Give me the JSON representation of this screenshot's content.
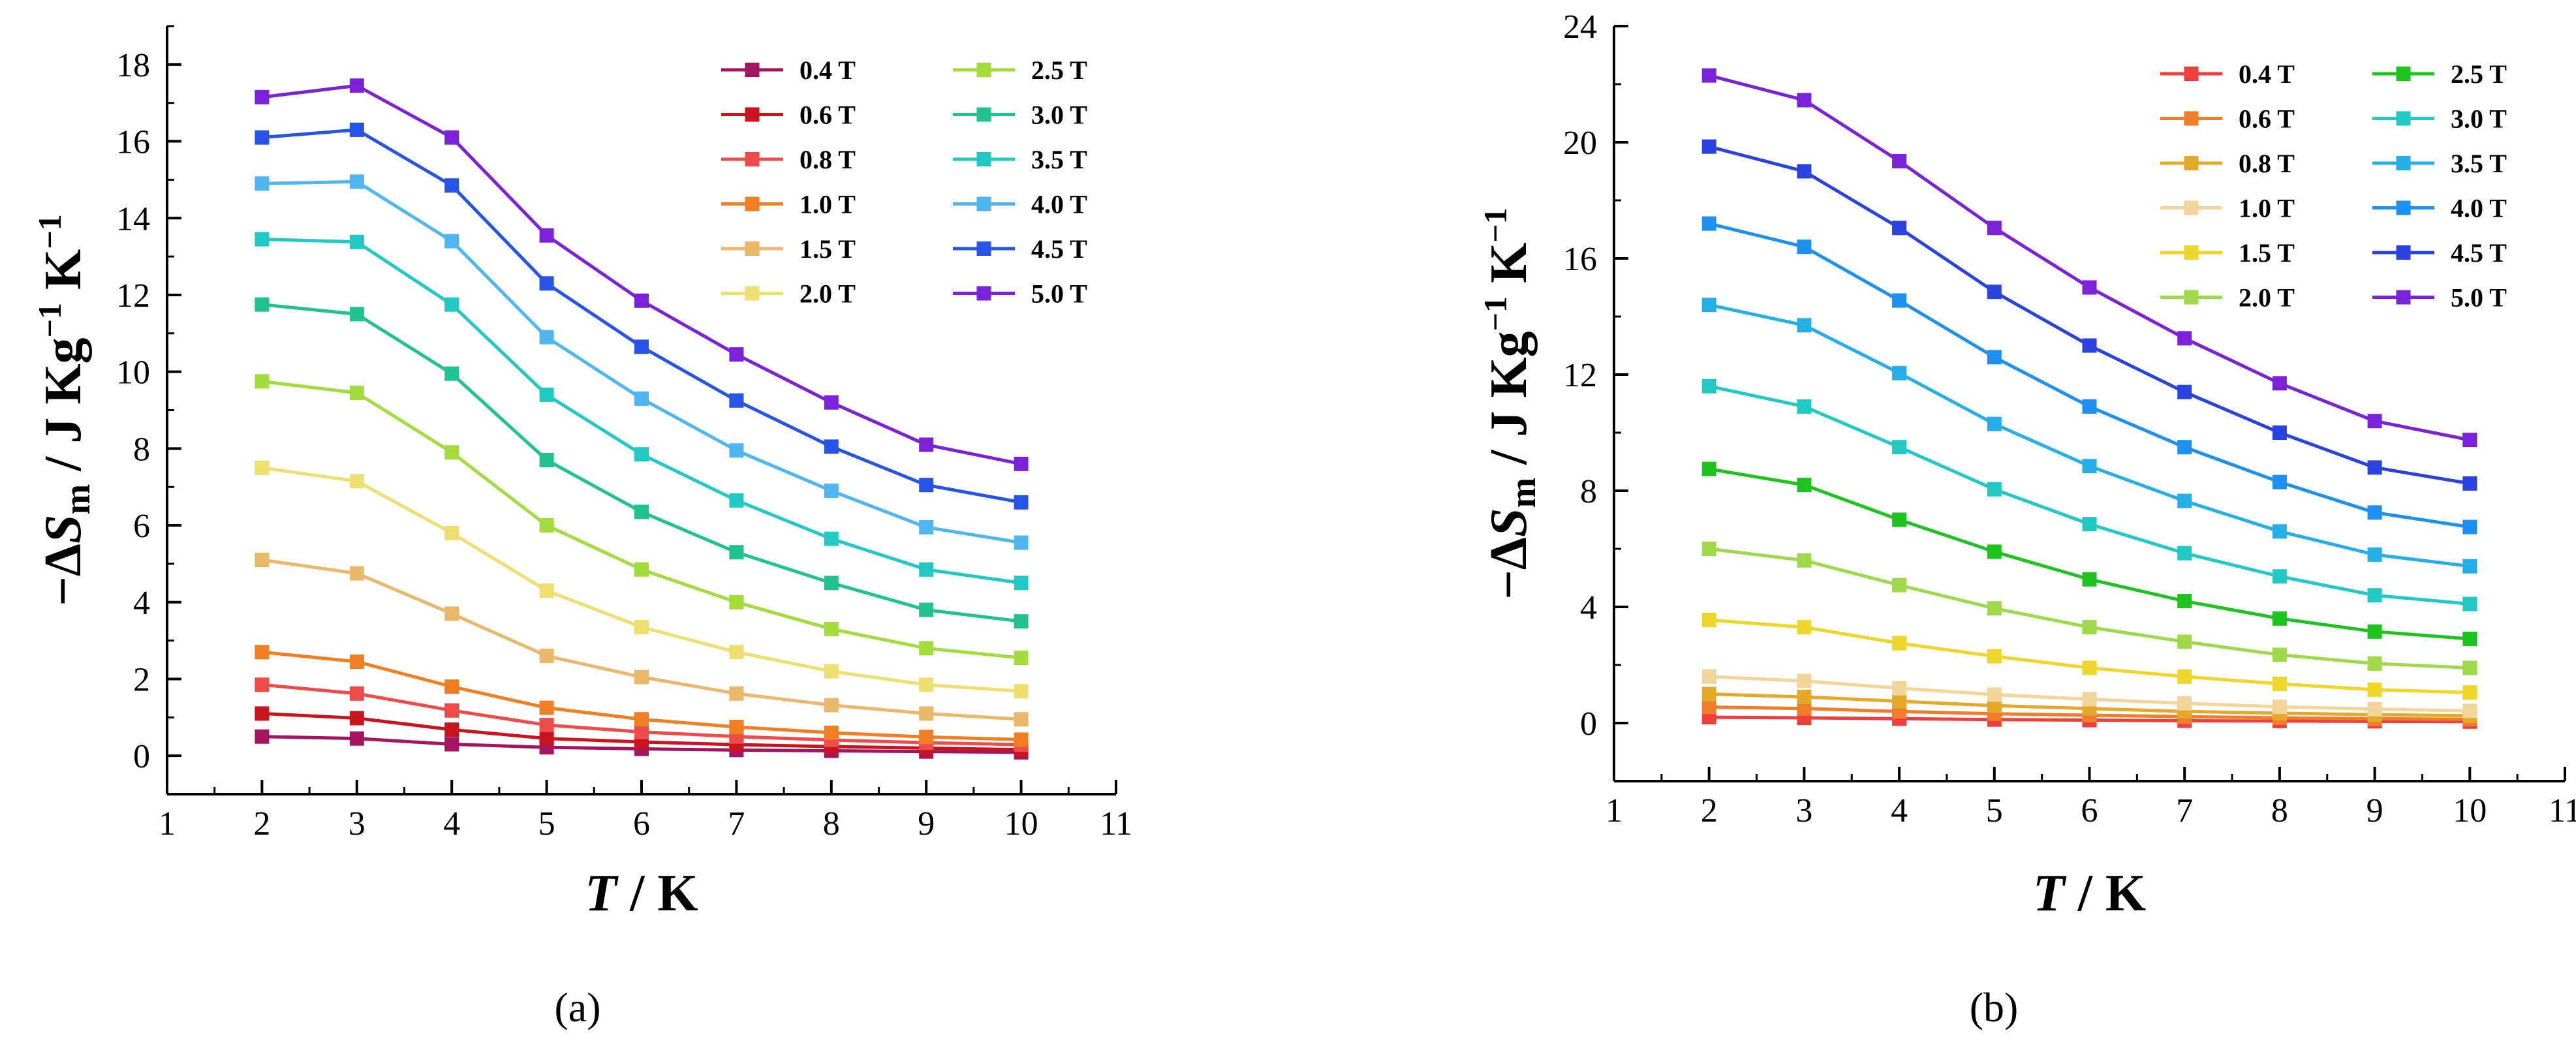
{
  "chart_data": [
    {
      "type": "line",
      "caption": "(a)",
      "x": [
        2,
        3,
        4,
        5,
        6,
        7,
        8,
        9,
        10
      ],
      "xlim": [
        1,
        11
      ],
      "ylim": [
        -1,
        19
      ],
      "xticks": [
        "1",
        "2",
        "3",
        "4",
        "5",
        "6",
        "7",
        "8",
        "9",
        "10",
        "11"
      ],
      "yticks": [
        "0",
        "2",
        "4",
        "6",
        "8",
        "10",
        "12",
        "14",
        "16",
        "18"
      ],
      "xlabel": {
        "italic": "T",
        "rest": " / K"
      },
      "ylabel": {
        "pre": "−Δ",
        "italic": "S",
        "sub": "m",
        "rest": " / J Kg",
        "sup1": "−1",
        "mid": " K",
        "sup2": "−1"
      },
      "legend_position": "top-right",
      "series": [
        {
          "name": "0.4 T",
          "color": "#a3155e",
          "values": [
            0.5,
            0.45,
            0.3,
            0.22,
            0.18,
            0.15,
            0.13,
            0.11,
            0.09
          ]
        },
        {
          "name": "0.6 T",
          "color": "#c8141e",
          "values": [
            1.1,
            0.98,
            0.68,
            0.45,
            0.36,
            0.29,
            0.24,
            0.2,
            0.16
          ]
        },
        {
          "name": "0.8 T",
          "color": "#ee4b4b",
          "values": [
            1.85,
            1.62,
            1.18,
            0.8,
            0.62,
            0.5,
            0.41,
            0.34,
            0.29
          ]
        },
        {
          "name": "1.0 T",
          "color": "#f07f24",
          "values": [
            2.7,
            2.45,
            1.8,
            1.25,
            0.95,
            0.75,
            0.6,
            0.49,
            0.42
          ]
        },
        {
          "name": "1.5 T",
          "color": "#e9b86a",
          "values": [
            5.1,
            4.75,
            3.7,
            2.6,
            2.05,
            1.62,
            1.32,
            1.1,
            0.95
          ]
        },
        {
          "name": "2.0 T",
          "color": "#eee070",
          "values": [
            7.5,
            7.15,
            5.8,
            4.3,
            3.35,
            2.7,
            2.2,
            1.85,
            1.68
          ]
        },
        {
          "name": "2.5 T",
          "color": "#a3dc3c",
          "values": [
            9.75,
            9.45,
            7.9,
            6.0,
            4.85,
            4.0,
            3.3,
            2.8,
            2.55
          ]
        },
        {
          "name": "3.0 T",
          "color": "#22c28e",
          "values": [
            11.75,
            11.5,
            9.95,
            7.7,
            6.35,
            5.3,
            4.5,
            3.8,
            3.5
          ]
        },
        {
          "name": "3.5 T",
          "color": "#22c9c4",
          "values": [
            13.45,
            13.38,
            11.75,
            9.4,
            7.85,
            6.65,
            5.65,
            4.85,
            4.5
          ]
        },
        {
          "name": "4.0 T",
          "color": "#4fb6f0",
          "values": [
            14.9,
            14.95,
            13.4,
            10.9,
            9.3,
            7.95,
            6.9,
            5.95,
            5.55
          ]
        },
        {
          "name": "4.5 T",
          "color": "#2753e6",
          "values": [
            16.1,
            16.3,
            14.85,
            12.3,
            10.65,
            9.25,
            8.05,
            7.05,
            6.6
          ]
        },
        {
          "name": "5.0 T",
          "color": "#7b22d8",
          "values": [
            17.15,
            17.45,
            16.1,
            13.55,
            11.85,
            10.45,
            9.2,
            8.1,
            7.6
          ]
        }
      ]
    },
    {
      "type": "line",
      "caption": "(b)",
      "x": [
        2,
        3,
        4,
        5,
        6,
        7,
        8,
        9,
        10
      ],
      "xlim": [
        1,
        11
      ],
      "ylim": [
        -2,
        24
      ],
      "xticks": [
        "1",
        "2",
        "3",
        "4",
        "5",
        "6",
        "7",
        "8",
        "9",
        "10",
        "11"
      ],
      "yticks": [
        "0",
        "4",
        "8",
        "12",
        "16",
        "20",
        "24"
      ],
      "xlabel": {
        "italic": "T",
        "rest": " / K"
      },
      "ylabel": {
        "pre": "−Δ",
        "italic": "S",
        "sub": "m",
        "rest": " / J Kg",
        "sup1": "−1",
        "mid": " K",
        "sup2": "−1"
      },
      "legend_position": "top-right",
      "series": [
        {
          "name": "0.4 T",
          "color": "#ee3e3e",
          "values": [
            0.2,
            0.18,
            0.15,
            0.12,
            0.1,
            0.08,
            0.07,
            0.06,
            0.05
          ]
        },
        {
          "name": "0.6 T",
          "color": "#ef7d2a",
          "values": [
            0.55,
            0.5,
            0.4,
            0.32,
            0.27,
            0.22,
            0.18,
            0.15,
            0.13
          ]
        },
        {
          "name": "0.8 T",
          "color": "#e4a82a",
          "values": [
            1.0,
            0.9,
            0.75,
            0.6,
            0.5,
            0.4,
            0.34,
            0.29,
            0.25
          ]
        },
        {
          "name": "1.0 T",
          "color": "#f2d59a",
          "values": [
            1.6,
            1.45,
            1.2,
            0.98,
            0.82,
            0.68,
            0.56,
            0.48,
            0.42
          ]
        },
        {
          "name": "1.5 T",
          "color": "#eed72a",
          "values": [
            3.55,
            3.3,
            2.75,
            2.3,
            1.9,
            1.6,
            1.35,
            1.15,
            1.05
          ]
        },
        {
          "name": "2.0 T",
          "color": "#9fd84a",
          "values": [
            6.0,
            5.6,
            4.75,
            3.95,
            3.3,
            2.8,
            2.35,
            2.05,
            1.9
          ]
        },
        {
          "name": "2.5 T",
          "color": "#1fc31f",
          "values": [
            8.75,
            8.2,
            7.0,
            5.9,
            4.95,
            4.2,
            3.6,
            3.15,
            2.9
          ]
        },
        {
          "name": "3.0 T",
          "color": "#22c9c4",
          "values": [
            11.6,
            10.9,
            9.5,
            8.05,
            6.85,
            5.85,
            5.05,
            4.4,
            4.1
          ]
        },
        {
          "name": "3.5 T",
          "color": "#26aee6",
          "values": [
            14.4,
            13.7,
            12.05,
            10.3,
            8.85,
            7.65,
            6.6,
            5.8,
            5.4
          ]
        },
        {
          "name": "4.0 T",
          "color": "#1e90f0",
          "values": [
            17.2,
            16.4,
            14.55,
            12.6,
            10.9,
            9.5,
            8.3,
            7.25,
            6.75
          ]
        },
        {
          "name": "4.5 T",
          "color": "#2a42de",
          "values": [
            19.85,
            19.0,
            17.05,
            14.85,
            13.0,
            11.4,
            10.0,
            8.8,
            8.25
          ]
        },
        {
          "name": "5.0 T",
          "color": "#7b22d8",
          "values": [
            22.3,
            21.45,
            19.35,
            17.05,
            15.0,
            13.25,
            11.7,
            10.4,
            9.75
          ]
        }
      ]
    }
  ]
}
